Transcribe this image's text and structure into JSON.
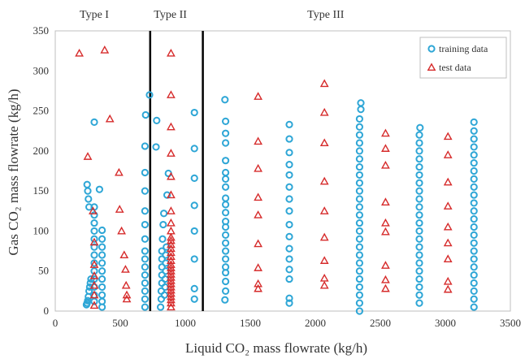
{
  "chart_data": {
    "type": "scatter",
    "xlabel": "Liquid CO₂ mass flowrate (kg/h)",
    "ylabel": "Gas CO₂ mass flowrate (kg/h)",
    "xlim": [
      0,
      3500
    ],
    "ylim": [
      0,
      350
    ],
    "xticks": [
      0,
      500,
      1000,
      1500,
      2000,
      2500,
      3000,
      3500
    ],
    "yticks": [
      0,
      50,
      100,
      150,
      200,
      250,
      300,
      350
    ],
    "grid": false,
    "legend_position": "top-right",
    "region_labels": [
      {
        "label": "Type I",
        "x": 300
      },
      {
        "label": "Type II",
        "x": 885
      },
      {
        "label": "Type III",
        "x": 2080
      }
    ],
    "boundaries": [
      730,
      1135
    ],
    "series": [
      {
        "name": "training data",
        "marker": "circle",
        "color": "#2ea6d6",
        "points": [
          [
            240,
            8
          ],
          [
            245,
            10
          ],
          [
            250,
            13
          ],
          [
            255,
            18
          ],
          [
            260,
            25
          ],
          [
            265,
            30
          ],
          [
            270,
            35
          ],
          [
            275,
            40
          ],
          [
            245,
            158
          ],
          [
            250,
            150
          ],
          [
            255,
            140
          ],
          [
            260,
            130
          ],
          [
            300,
            12
          ],
          [
            300,
            20
          ],
          [
            300,
            30
          ],
          [
            300,
            40
          ],
          [
            300,
            50
          ],
          [
            300,
            60
          ],
          [
            300,
            70
          ],
          [
            300,
            80
          ],
          [
            300,
            90
          ],
          [
            300,
            100
          ],
          [
            300,
            110
          ],
          [
            300,
            120
          ],
          [
            300,
            130
          ],
          [
            300,
            236
          ],
          [
            340,
            152
          ],
          [
            360,
            5
          ],
          [
            360,
            12
          ],
          [
            360,
            20
          ],
          [
            360,
            30
          ],
          [
            360,
            40
          ],
          [
            360,
            50
          ],
          [
            360,
            60
          ],
          [
            360,
            70
          ],
          [
            360,
            80
          ],
          [
            360,
            90
          ],
          [
            360,
            101
          ],
          [
            690,
            5
          ],
          [
            690,
            15
          ],
          [
            690,
            25
          ],
          [
            690,
            35
          ],
          [
            690,
            45
          ],
          [
            690,
            55
          ],
          [
            690,
            65
          ],
          [
            690,
            75
          ],
          [
            690,
            90
          ],
          [
            690,
            108
          ],
          [
            690,
            125
          ],
          [
            690,
            150
          ],
          [
            690,
            173
          ],
          [
            690,
            206
          ],
          [
            695,
            245
          ],
          [
            725,
            270
          ],
          [
            775,
            205
          ],
          [
            780,
            238
          ],
          [
            810,
            5
          ],
          [
            815,
            15
          ],
          [
            815,
            25
          ],
          [
            820,
            35
          ],
          [
            820,
            45
          ],
          [
            820,
            55
          ],
          [
            820,
            65
          ],
          [
            820,
            75
          ],
          [
            825,
            90
          ],
          [
            830,
            108
          ],
          [
            835,
            122
          ],
          [
            840,
            20
          ],
          [
            845,
            30
          ],
          [
            845,
            40
          ],
          [
            850,
            50
          ],
          [
            850,
            60
          ],
          [
            850,
            70
          ],
          [
            855,
            80
          ],
          [
            860,
            145
          ],
          [
            870,
            172
          ],
          [
            1070,
            15
          ],
          [
            1070,
            28
          ],
          [
            1070,
            65
          ],
          [
            1070,
            100
          ],
          [
            1070,
            132
          ],
          [
            1070,
            166
          ],
          [
            1070,
            203
          ],
          [
            1070,
            248
          ],
          [
            1305,
            14
          ],
          [
            1310,
            25
          ],
          [
            1310,
            37
          ],
          [
            1310,
            48
          ],
          [
            1310,
            55
          ],
          [
            1310,
            65
          ],
          [
            1310,
            75
          ],
          [
            1310,
            85
          ],
          [
            1310,
            95
          ],
          [
            1310,
            105
          ],
          [
            1310,
            112
          ],
          [
            1310,
            123
          ],
          [
            1310,
            133
          ],
          [
            1310,
            141
          ],
          [
            1310,
            155
          ],
          [
            1310,
            165
          ],
          [
            1310,
            173
          ],
          [
            1310,
            188
          ],
          [
            1310,
            210
          ],
          [
            1310,
            222
          ],
          [
            1310,
            237
          ],
          [
            1305,
            264
          ],
          [
            1800,
            10
          ],
          [
            1800,
            16
          ],
          [
            1800,
            40
          ],
          [
            1800,
            52
          ],
          [
            1800,
            65
          ],
          [
            1800,
            78
          ],
          [
            1800,
            93
          ],
          [
            1800,
            108
          ],
          [
            1800,
            125
          ],
          [
            1800,
            140
          ],
          [
            1800,
            155
          ],
          [
            1800,
            170
          ],
          [
            1800,
            183
          ],
          [
            1800,
            198
          ],
          [
            1800,
            215
          ],
          [
            1800,
            233
          ],
          [
            2340,
            0
          ],
          [
            2340,
            10
          ],
          [
            2340,
            20
          ],
          [
            2340,
            30
          ],
          [
            2340,
            40
          ],
          [
            2340,
            50
          ],
          [
            2340,
            60
          ],
          [
            2340,
            70
          ],
          [
            2340,
            80
          ],
          [
            2340,
            90
          ],
          [
            2340,
            100
          ],
          [
            2340,
            110
          ],
          [
            2340,
            120
          ],
          [
            2340,
            130
          ],
          [
            2340,
            140
          ],
          [
            2340,
            150
          ],
          [
            2340,
            160
          ],
          [
            2340,
            170
          ],
          [
            2340,
            180
          ],
          [
            2340,
            190
          ],
          [
            2340,
            200
          ],
          [
            2340,
            210
          ],
          [
            2340,
            220
          ],
          [
            2340,
            230
          ],
          [
            2340,
            240
          ],
          [
            2350,
            252
          ],
          [
            2350,
            260
          ],
          [
            2800,
            10
          ],
          [
            2800,
            20
          ],
          [
            2800,
            30
          ],
          [
            2800,
            40
          ],
          [
            2800,
            50
          ],
          [
            2800,
            60
          ],
          [
            2800,
            70
          ],
          [
            2800,
            80
          ],
          [
            2800,
            90
          ],
          [
            2800,
            100
          ],
          [
            2800,
            110
          ],
          [
            2800,
            120
          ],
          [
            2800,
            130
          ],
          [
            2800,
            140
          ],
          [
            2800,
            150
          ],
          [
            2800,
            160
          ],
          [
            2800,
            170
          ],
          [
            2800,
            180
          ],
          [
            2800,
            190
          ],
          [
            2800,
            200
          ],
          [
            2800,
            210
          ],
          [
            2800,
            220
          ],
          [
            2805,
            229
          ],
          [
            3220,
            5
          ],
          [
            3220,
            15
          ],
          [
            3220,
            25
          ],
          [
            3220,
            35
          ],
          [
            3220,
            45
          ],
          [
            3220,
            55
          ],
          [
            3220,
            65
          ],
          [
            3220,
            75
          ],
          [
            3220,
            85
          ],
          [
            3220,
            95
          ],
          [
            3220,
            105
          ],
          [
            3220,
            115
          ],
          [
            3220,
            125
          ],
          [
            3220,
            135
          ],
          [
            3220,
            145
          ],
          [
            3220,
            155
          ],
          [
            3220,
            165
          ],
          [
            3220,
            175
          ],
          [
            3220,
            185
          ],
          [
            3220,
            195
          ],
          [
            3220,
            205
          ],
          [
            3220,
            215
          ],
          [
            3220,
            225
          ],
          [
            3220,
            236
          ]
        ]
      },
      {
        "name": "test data",
        "marker": "triangle",
        "color": "#d62b2b",
        "points": [
          [
            185,
            322
          ],
          [
            380,
            326
          ],
          [
            250,
            193
          ],
          [
            290,
            125
          ],
          [
            300,
            86
          ],
          [
            300,
            58
          ],
          [
            300,
            44
          ],
          [
            300,
            32
          ],
          [
            300,
            20
          ],
          [
            300,
            7
          ],
          [
            420,
            240
          ],
          [
            490,
            173
          ],
          [
            495,
            127
          ],
          [
            510,
            100
          ],
          [
            530,
            70
          ],
          [
            540,
            52
          ],
          [
            545,
            32
          ],
          [
            550,
            20
          ],
          [
            550,
            15
          ],
          [
            890,
            322
          ],
          [
            890,
            270
          ],
          [
            890,
            230
          ],
          [
            890,
            197
          ],
          [
            890,
            168
          ],
          [
            890,
            145
          ],
          [
            890,
            125
          ],
          [
            890,
            110
          ],
          [
            890,
            100
          ],
          [
            890,
            92
          ],
          [
            890,
            88
          ],
          [
            890,
            83
          ],
          [
            890,
            78
          ],
          [
            890,
            73
          ],
          [
            890,
            68
          ],
          [
            890,
            63
          ],
          [
            890,
            58
          ],
          [
            890,
            54
          ],
          [
            890,
            50
          ],
          [
            890,
            46
          ],
          [
            890,
            42
          ],
          [
            890,
            38
          ],
          [
            890,
            34
          ],
          [
            890,
            30
          ],
          [
            890,
            26
          ],
          [
            890,
            22
          ],
          [
            890,
            18
          ],
          [
            890,
            14
          ],
          [
            890,
            10
          ],
          [
            890,
            5
          ],
          [
            1560,
            268
          ],
          [
            1560,
            212
          ],
          [
            1560,
            178
          ],
          [
            1560,
            142
          ],
          [
            1560,
            120
          ],
          [
            1560,
            84
          ],
          [
            1560,
            54
          ],
          [
            1560,
            34
          ],
          [
            1560,
            28
          ],
          [
            2070,
            284
          ],
          [
            2070,
            248
          ],
          [
            2070,
            210
          ],
          [
            2070,
            162
          ],
          [
            2070,
            125
          ],
          [
            2070,
            92
          ],
          [
            2070,
            63
          ],
          [
            2070,
            41
          ],
          [
            2070,
            32
          ],
          [
            2540,
            222
          ],
          [
            2540,
            203
          ],
          [
            2540,
            182
          ],
          [
            2540,
            136
          ],
          [
            2540,
            110
          ],
          [
            2540,
            99
          ],
          [
            2540,
            57
          ],
          [
            2540,
            39
          ],
          [
            2540,
            28
          ],
          [
            3020,
            218
          ],
          [
            3020,
            195
          ],
          [
            3020,
            161
          ],
          [
            3020,
            131
          ],
          [
            3020,
            105
          ],
          [
            3020,
            85
          ],
          [
            3020,
            65
          ],
          [
            3020,
            37
          ],
          [
            3020,
            27
          ]
        ]
      }
    ]
  }
}
